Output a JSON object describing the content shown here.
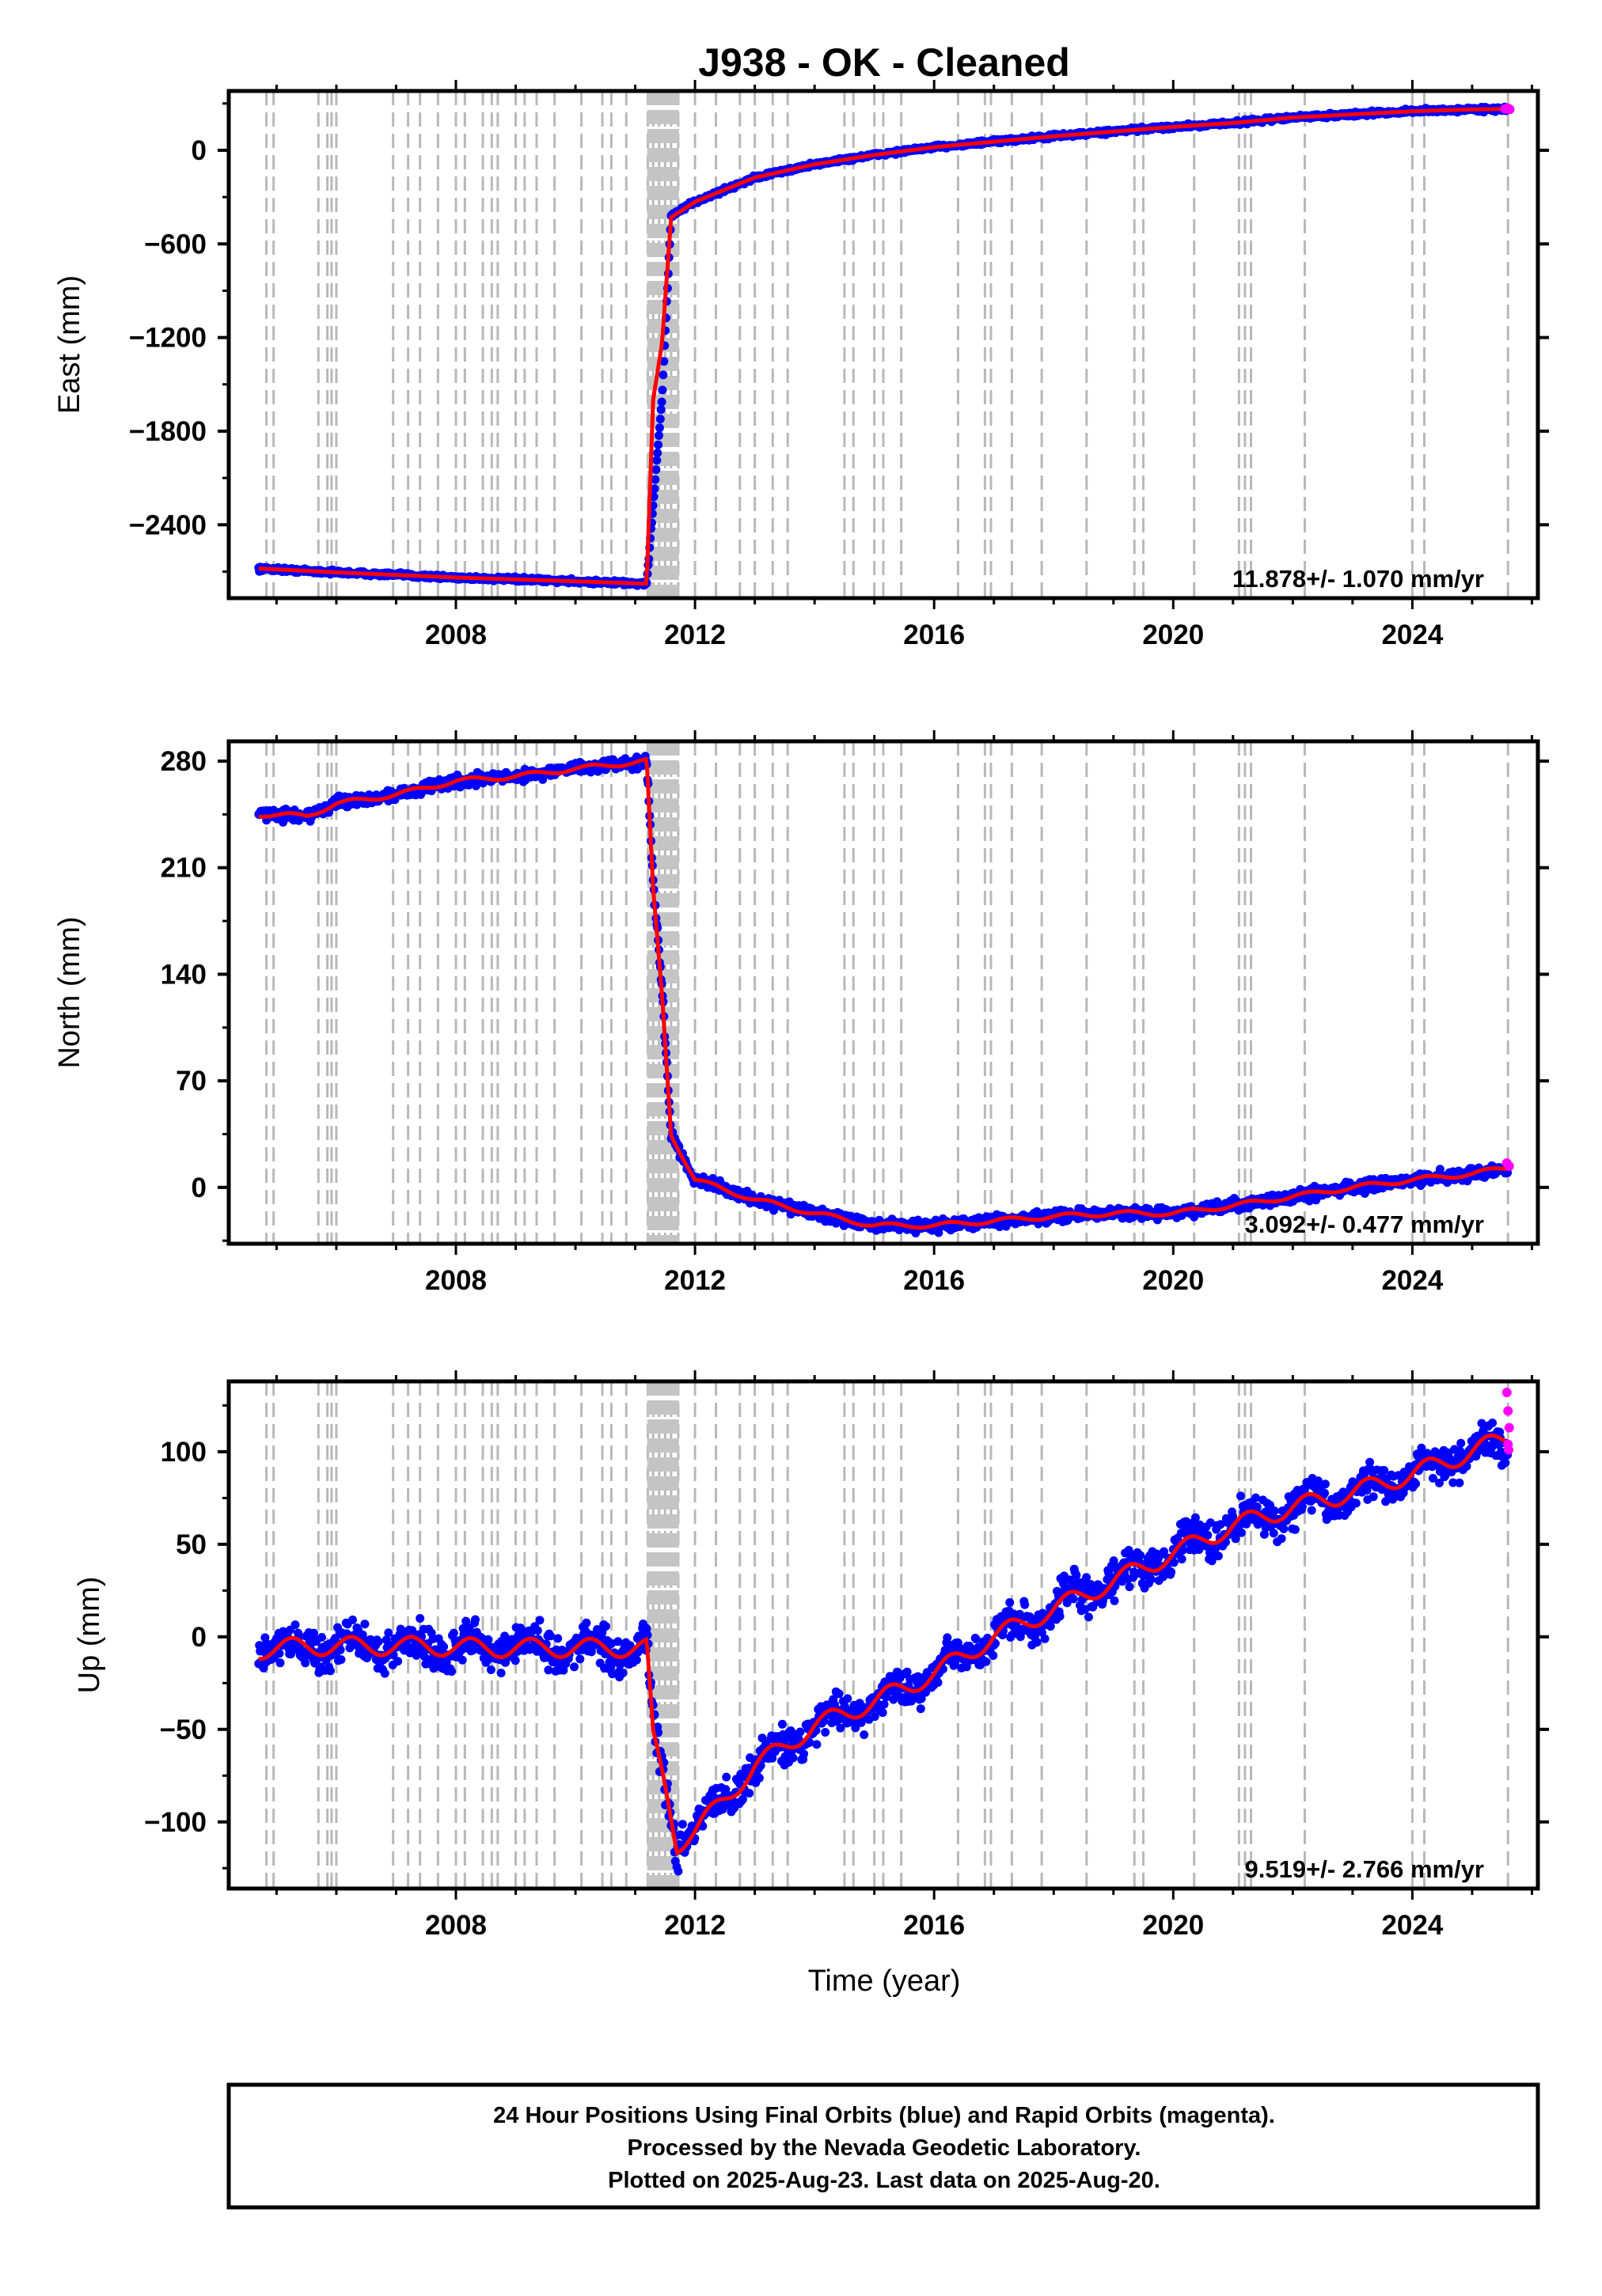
{
  "chart_data": {
    "type": "scatter",
    "title": "J938  - OK - Cleaned",
    "xlabel": "Time (year)",
    "xlim": [
      2004.2,
      2026.1
    ],
    "xticks": [
      2008,
      2012,
      2016,
      2020,
      2024
    ],
    "equipment_change_epochs": [
      2004.83,
      2004.95,
      2005.7,
      2005.85,
      2005.92,
      2006.0,
      2006.95,
      2007.2,
      2007.4,
      2007.7,
      2008.0,
      2008.15,
      2008.45,
      2008.6,
      2008.7,
      2009.0,
      2009.15,
      2009.35,
      2009.65,
      2010.1,
      2010.45,
      2010.6,
      2010.85,
      2011.21,
      2011.3,
      2011.4,
      2011.5,
      2011.6,
      2011.72,
      2012.0,
      2012.35,
      2012.75,
      2013.0,
      2013.3,
      2013.55,
      2014.5,
      2014.65,
      2015.0,
      2015.15,
      2015.45,
      2016.4,
      2016.85,
      2016.95,
      2017.3,
      2017.8,
      2018.55,
      2019.35,
      2019.5,
      2020.35,
      2021.1,
      2021.2,
      2021.3,
      2022.2,
      2024.0,
      2024.2,
      2025.6
    ],
    "panels": [
      {
        "ylabel": "East (mm)",
        "ylim": [
          -2870,
          380
        ],
        "yticks": [
          0,
          -600,
          -1200,
          -1800,
          -2400
        ],
        "rate": "11.878+/- 1.070 mm/yr",
        "series": [
          {
            "name": "Final Orbits (blue)",
            "color": "#0000ff",
            "x": [
              2004.7,
              2006.0,
              2008.0,
              2010.0,
              2011.19,
              2011.45,
              2011.6,
              2012.0,
              2013.0,
              2014.0,
              2015.0,
              2016.0,
              2017.0,
              2018.0,
              2019.0,
              2020.0,
              2021.0,
              2022.0,
              2023.0,
              2024.0,
              2025.0,
              2025.6
            ],
            "y": [
              -2680,
              -2705,
              -2738,
              -2762,
              -2778,
              -1580,
              -420,
              -330,
              -175,
              -90,
              -30,
              20,
              55,
              90,
              120,
              150,
              175,
              210,
              230,
              250,
              262,
              265
            ]
          },
          {
            "name": "Model fit (red)",
            "color": "#ff0000",
            "x": [
              2004.7,
              2006.0,
              2008.0,
              2010.0,
              2011.19,
              2011.3,
              2011.45,
              2011.6,
              2012.0,
              2013.0,
              2014.0,
              2015.0,
              2016.0,
              2017.0,
              2018.0,
              2019.0,
              2020.0,
              2021.0,
              2022.0,
              2023.0,
              2024.0,
              2025.0,
              2025.6
            ],
            "y": [
              -2680,
              -2705,
              -2738,
              -2762,
              -2778,
              -1600,
              -1230,
              -430,
              -330,
              -175,
              -90,
              -30,
              20,
              55,
              90,
              120,
              150,
              175,
              210,
              230,
              250,
              262,
              265
            ]
          },
          {
            "name": "Rapid Orbits (magenta)",
            "color": "#ff00ff",
            "x": [
              2025.55,
              2025.6,
              2025.63
            ],
            "y": [
              265,
              270,
              262
            ]
          }
        ]
      },
      {
        "ylabel": "North (mm)",
        "ylim": [
          -37,
          293
        ],
        "yticks": [
          280,
          210,
          140,
          70,
          0
        ],
        "rate": "3.092+/- 0.477 mm/yr",
        "series": [
          {
            "name": "Final Orbits (blue)",
            "color": "#0000ff",
            "x": [
              2004.7,
              2005.5,
              2006.0,
              2007.0,
              2008.0,
              2009.0,
              2010.0,
              2011.19,
              2011.3,
              2011.45,
              2011.6,
              2012.0,
              2013.0,
              2014.0,
              2015.0,
              2016.0,
              2017.0,
              2018.0,
              2019.0,
              2020.0,
              2021.0,
              2022.0,
              2023.0,
              2024.0,
              2025.0,
              2025.6
            ],
            "y": [
              245,
              244,
              252,
              258,
              267,
              270,
              275,
              280,
              200,
              130,
              35,
              5,
              -8,
              -17,
              -25,
              -25,
              -22,
              -19,
              -17,
              -17,
              -12,
              -6,
              0,
              5,
              9,
              13
            ]
          },
          {
            "name": "Model fit (red)",
            "color": "#ff0000",
            "x": [
              2004.7,
              2005.5,
              2006.0,
              2007.0,
              2008.0,
              2009.0,
              2010.0,
              2011.19,
              2011.3,
              2011.45,
              2011.6,
              2012.0,
              2013.0,
              2014.0,
              2015.0,
              2016.0,
              2017.0,
              2018.0,
              2019.0,
              2020.0,
              2021.0,
              2022.0,
              2023.0,
              2024.0,
              2025.0,
              2025.6
            ],
            "y": [
              245,
              244,
              252,
              258,
              267,
              270,
              275,
              280,
              195,
              125,
              35,
              5,
              -8,
              -17,
              -25,
              -25,
              -22,
              -19,
              -17,
              -17,
              -12,
              -6,
              0,
              5,
              9,
              13
            ]
          },
          {
            "name": "Rapid Orbits (magenta)",
            "color": "#ff00ff",
            "x": [
              2025.58,
              2025.62
            ],
            "y": [
              16,
              14
            ]
          }
        ]
      },
      {
        "ylabel": "Up (mm)",
        "ylim": [
          -136,
          138
        ],
        "yticks": [
          100,
          50,
          0,
          -50,
          -100
        ],
        "rate": "9.519+/- 2.766 mm/yr",
        "series": [
          {
            "name": "Final Orbits (blue)",
            "color": "#0000ff",
            "x": [
              2004.7,
              2005.5,
              2006.5,
              2007.5,
              2008.5,
              2009.5,
              2010.5,
              2011.19,
              2011.3,
              2011.5,
              2011.7,
              2012.0,
              2013.0,
              2014.0,
              2015.0,
              2016.0,
              2017.0,
              2018.0,
              2019.0,
              2020.0,
              2021.0,
              2022.0,
              2023.0,
              2024.0,
              2025.0,
              2025.6
            ],
            "y": [
              -7,
              -5,
              -5,
              -5,
              -6,
              -6,
              -6,
              -6,
              -50,
              -80,
              -110,
              -105,
              -70,
              -48,
              -35,
              -20,
              0,
              15,
              30,
              45,
              60,
              70,
              78,
              88,
              100,
              103
            ]
          },
          {
            "name": "Model fit (red)",
            "color": "#ff0000",
            "x": [
              2004.7,
              2005.5,
              2006.5,
              2007.5,
              2008.5,
              2009.5,
              2010.5,
              2011.19,
              2011.3,
              2011.5,
              2011.7,
              2012.0,
              2013.0,
              2014.0,
              2015.0,
              2016.0,
              2017.0,
              2018.0,
              2019.0,
              2020.0,
              2021.0,
              2022.0,
              2023.0,
              2024.0,
              2025.0,
              2025.6
            ],
            "y": [
              -7,
              -5,
              -5,
              -5,
              -6,
              -6,
              -6,
              -6,
              -55,
              -80,
              -112,
              -105,
              -70,
              -48,
              -35,
              -20,
              0,
              15,
              30,
              45,
              60,
              70,
              78,
              88,
              100,
              108
            ]
          },
          {
            "name": "Rapid Orbits (magenta)",
            "color": "#ff00ff",
            "x": [
              2025.58,
              2025.6,
              2025.62,
              2025.6,
              2025.61
            ],
            "y": [
              132,
              122,
              113,
              104,
              101
            ]
          }
        ]
      }
    ],
    "footer": [
      "24 Hour Positions Using Final Orbits (blue) and Rapid Orbits (magenta).",
      "Processed by the Nevada Geodetic Laboratory.",
      "Plotted on 2025-Aug-23. Last data on 2025-Aug-20."
    ]
  }
}
